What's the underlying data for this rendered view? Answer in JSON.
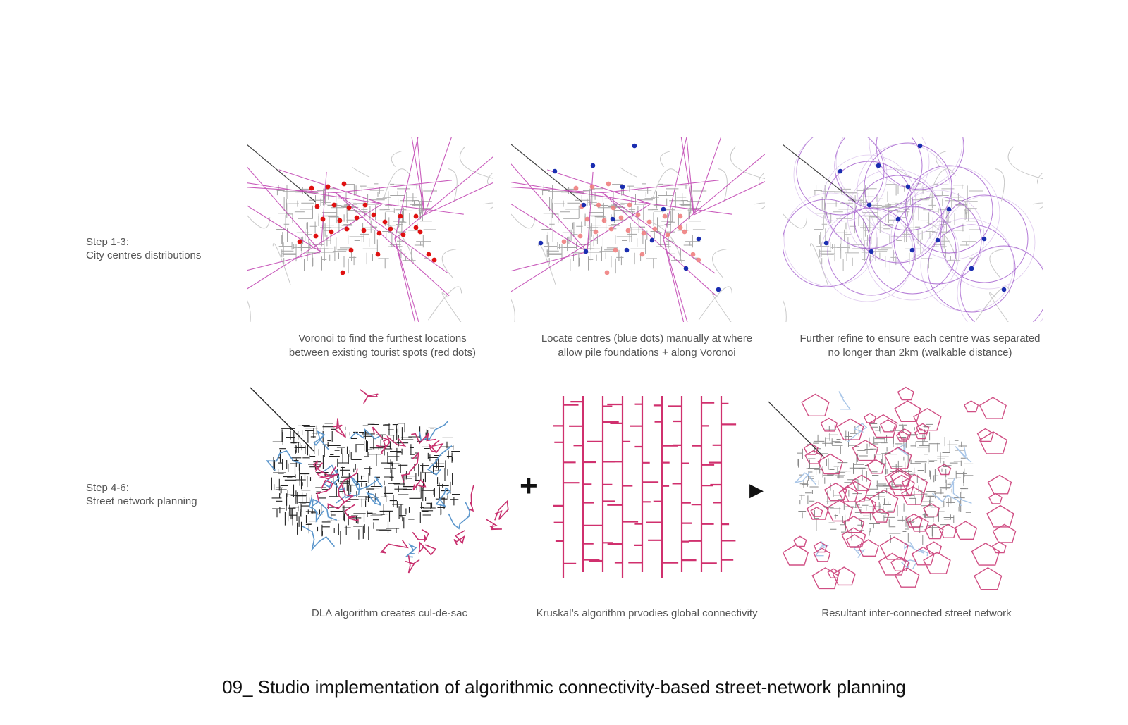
{
  "steps": [
    {
      "label": "Step 1-3:",
      "desc": "City centres distributions"
    },
    {
      "label": "Step 4-6:",
      "desc": "Street network planning"
    }
  ],
  "captions_row1": [
    {
      "line1": "Voronoi to find the furthest locations",
      "line2": "between existing tourist spots (red dots)"
    },
    {
      "line1": "Locate centres (blue dots) manually at where",
      "line2": "allow pile foundations + along Voronoi"
    },
    {
      "line1": "Further refine to ensure each centre was separated",
      "line2": "no longer than 2km (walkable distance)"
    }
  ],
  "captions_row2": [
    "DLA algorithm creates cul-de-sac",
    "Kruskal’s algorithm prvodies global connectivity",
    "Resultant inter-connected street network"
  ],
  "operators": {
    "plus": "+",
    "arrow": "▶"
  },
  "title": "09_ Studio implementation of algorithmic connectivity-based street-network planning",
  "colors": {
    "voronoi": "#c040b0",
    "red_dot": "#e01010",
    "blue_dot": "#1a2db0",
    "circle": "#9b4fc8",
    "dla_pink": "#c8306e",
    "dla_blue": "#5b96cc",
    "maze": "#d0306e",
    "map_grey": "#8a8a8a"
  }
}
